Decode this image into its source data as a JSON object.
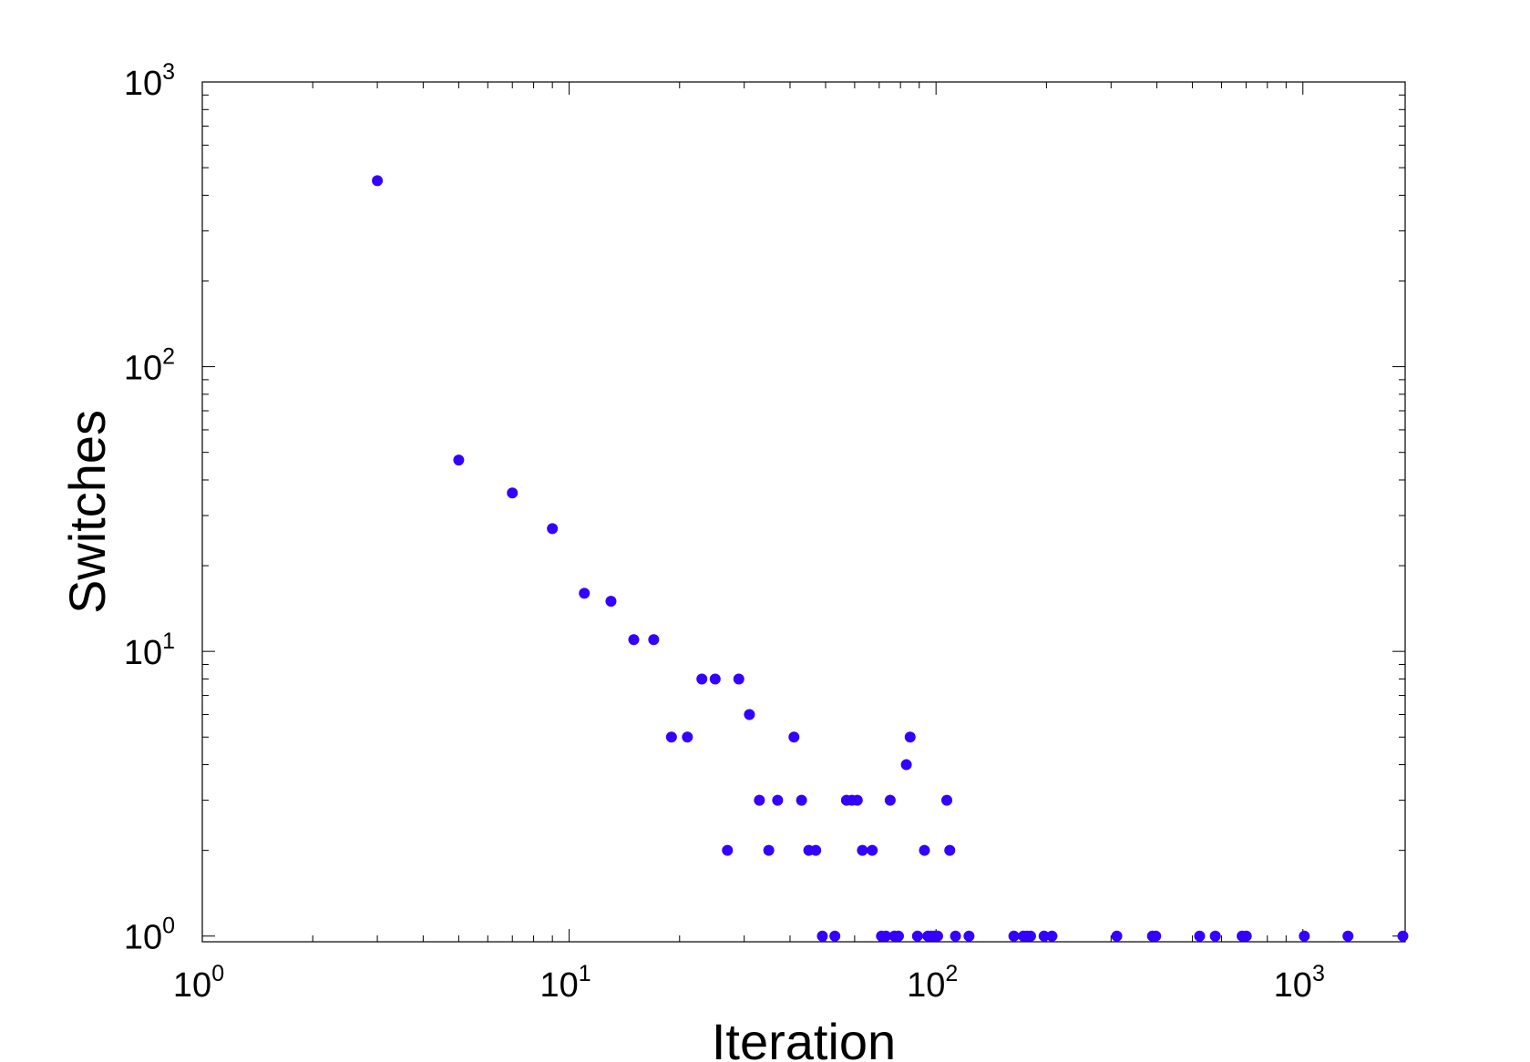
{
  "chart_data": {
    "type": "scatter",
    "title": "",
    "xlabel": "Iteration",
    "ylabel": "Switches",
    "xscale": "log",
    "yscale": "log",
    "xlim": [
      1,
      1900
    ],
    "ylim": [
      0.955,
      1000
    ],
    "grid": false,
    "marker_color": "#3300ff",
    "x_ticks": [
      {
        "value": 1,
        "base": "10",
        "exp": "0"
      },
      {
        "value": 10,
        "base": "10",
        "exp": "1"
      },
      {
        "value": 100,
        "base": "10",
        "exp": "2"
      },
      {
        "value": 1000,
        "base": "10",
        "exp": "3"
      }
    ],
    "y_ticks": [
      {
        "value": 1,
        "base": "10",
        "exp": "0"
      },
      {
        "value": 10,
        "base": "10",
        "exp": "1"
      },
      {
        "value": 100,
        "base": "10",
        "exp": "2"
      },
      {
        "value": 1000,
        "base": "10",
        "exp": "3"
      }
    ],
    "points": [
      [
        3,
        450
      ],
      [
        5,
        47
      ],
      [
        7,
        36
      ],
      [
        9,
        27
      ],
      [
        11,
        16
      ],
      [
        13,
        15
      ],
      [
        15,
        11
      ],
      [
        17,
        11
      ],
      [
        19,
        5
      ],
      [
        21,
        5
      ],
      [
        23,
        8
      ],
      [
        25,
        8
      ],
      [
        27,
        2
      ],
      [
        29,
        8
      ],
      [
        31,
        6
      ],
      [
        33,
        3
      ],
      [
        35,
        2
      ],
      [
        37,
        3
      ],
      [
        41,
        5
      ],
      [
        43,
        3
      ],
      [
        45,
        2
      ],
      [
        47,
        2
      ],
      [
        49,
        1
      ],
      [
        53,
        1
      ],
      [
        57,
        3
      ],
      [
        59,
        3
      ],
      [
        61,
        3
      ],
      [
        63,
        2
      ],
      [
        67,
        2
      ],
      [
        71,
        1
      ],
      [
        73,
        1
      ],
      [
        75,
        3
      ],
      [
        77,
        1
      ],
      [
        79,
        1
      ],
      [
        83,
        4
      ],
      [
        85,
        5
      ],
      [
        89,
        1
      ],
      [
        93,
        2
      ],
      [
        95,
        1
      ],
      [
        97,
        1
      ],
      [
        99,
        1
      ],
      [
        101,
        1
      ],
      [
        107,
        3
      ],
      [
        109,
        2
      ],
      [
        113,
        1
      ],
      [
        123,
        1
      ],
      [
        163,
        1
      ],
      [
        173,
        1
      ],
      [
        177,
        1
      ],
      [
        181,
        1
      ],
      [
        197,
        1
      ],
      [
        207,
        1
      ],
      [
        311,
        1
      ],
      [
        389,
        1
      ],
      [
        397,
        1
      ],
      [
        523,
        1
      ],
      [
        577,
        1
      ],
      [
        683,
        1
      ],
      [
        701,
        1
      ],
      [
        1009,
        1
      ],
      [
        1327,
        1
      ],
      [
        1873,
        1
      ]
    ]
  }
}
